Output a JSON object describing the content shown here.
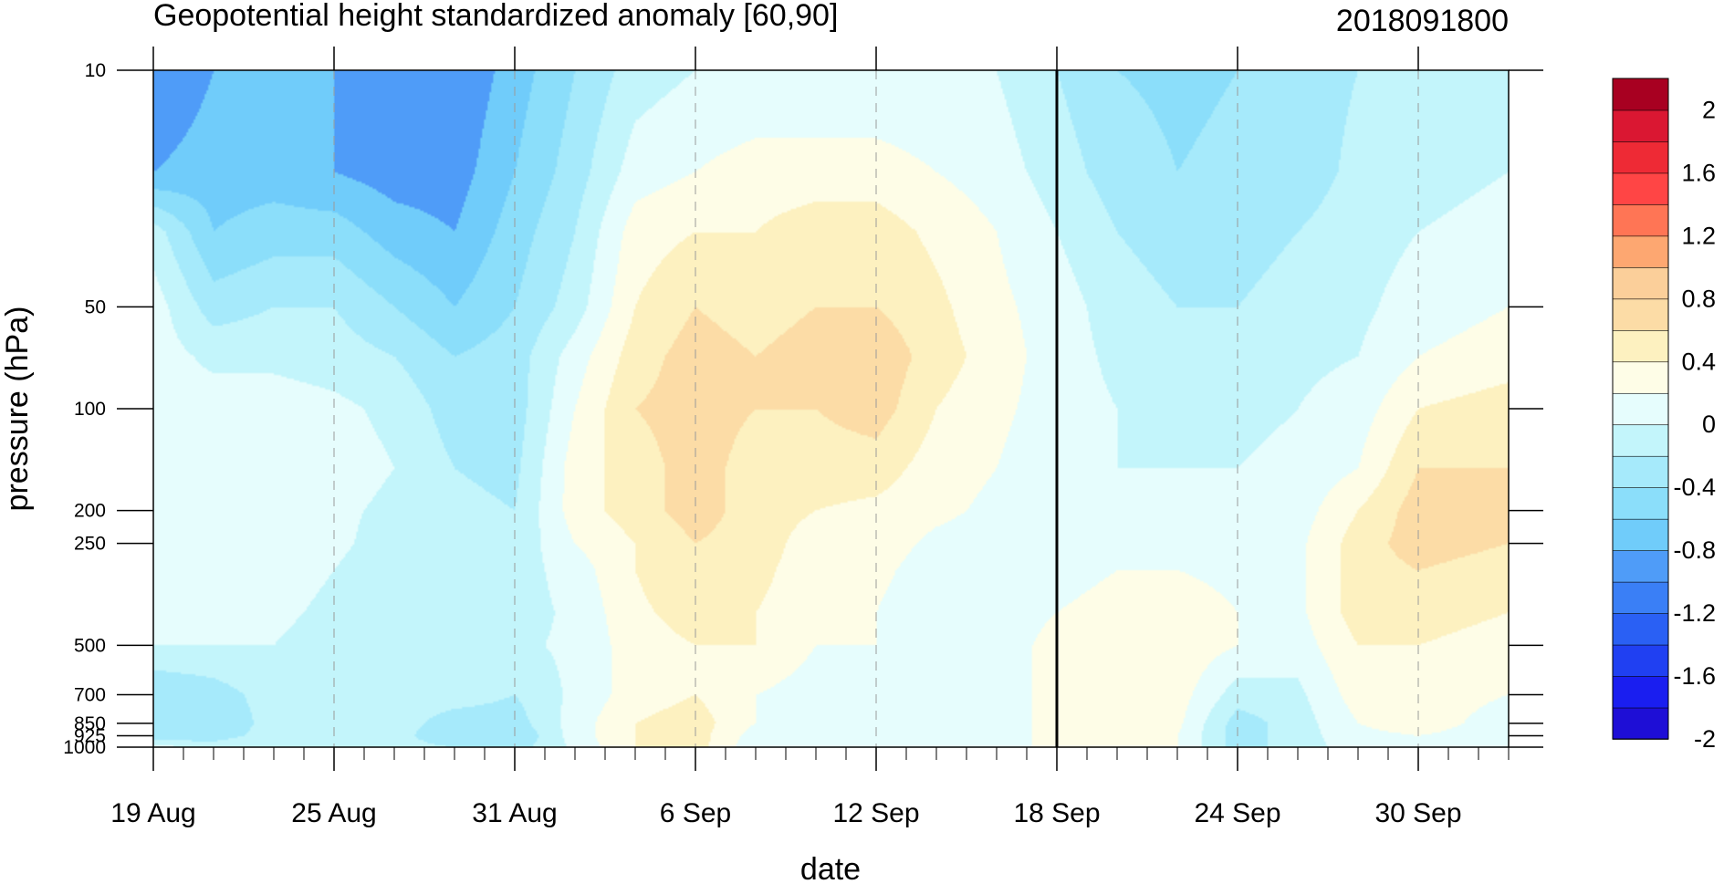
{
  "chart_data": {
    "type": "heatmap",
    "title": "Geopotential height standardized anomaly [60,90]",
    "date_label": "2018091800",
    "xlabel": "date",
    "ylabel": "pressure (hPa)",
    "x_ticks": [
      {
        "day": 0,
        "label": "19 Aug"
      },
      {
        "day": 6,
        "label": "25 Aug"
      },
      {
        "day": 12,
        "label": "31 Aug"
      },
      {
        "day": 18,
        "label": "6 Sep"
      },
      {
        "day": 24,
        "label": "12 Sep"
      },
      {
        "day": 30,
        "label": "18 Sep"
      },
      {
        "day": 36,
        "label": "24 Sep"
      },
      {
        "day": 42,
        "label": "30 Sep"
      }
    ],
    "x_range_days": [
      0,
      45
    ],
    "current_day": 30,
    "y_ticks": [
      {
        "p": 10,
        "label": "10"
      },
      {
        "p": 50,
        "label": "50"
      },
      {
        "p": 100,
        "label": "100"
      },
      {
        "p": 200,
        "label": "200"
      },
      {
        "p": 250,
        "label": "250"
      },
      {
        "p": 500,
        "label": "500"
      },
      {
        "p": 700,
        "label": "700"
      },
      {
        "p": 850,
        "label": "850"
      },
      {
        "p": 925,
        "label": "925"
      },
      {
        "p": 1000,
        "label": "1000"
      }
    ],
    "pressure_levels": [
      10,
      20,
      30,
      50,
      70,
      100,
      150,
      200,
      250,
      300,
      400,
      500,
      700,
      850,
      925,
      1000
    ],
    "y_scale": "log",
    "y_inverted": true,
    "contour_levels": [
      -2,
      -1.8,
      -1.6,
      -1.4,
      -1.2,
      -1,
      -0.8,
      -0.6,
      -0.4,
      -0.2,
      0,
      0.2,
      0.4,
      0.6,
      0.8,
      1,
      1.2,
      1.4,
      1.6,
      1.8,
      2
    ],
    "colorbar": {
      "colors": [
        "#1e0ed6",
        "#1a1ef0",
        "#2040f2",
        "#2a60f4",
        "#3a7ff6",
        "#4f9cf8",
        "#70ccfa",
        "#8bdefa",
        "#a6eafb",
        "#c3f5fb",
        "#e6fdfd",
        "#fefde7",
        "#fdf1c0",
        "#fcdca6",
        "#fbcf9a",
        "#fda771",
        "#ff7555",
        "#ff4545",
        "#ee2a35",
        "#da1732",
        "#a80021"
      ],
      "tick_labels": [
        "2",
        "1.6",
        "1.2",
        "0.8",
        "0.4",
        "0",
        "-0.4",
        "-0.8",
        "-1.2",
        "-1.6",
        "-2"
      ]
    },
    "anomaly_day_columns": [
      0,
      2,
      4,
      6,
      8,
      10,
      12,
      14,
      16,
      18,
      20,
      22,
      24,
      26,
      28,
      30,
      32,
      34,
      36,
      38,
      40,
      42,
      45
    ],
    "anomaly_grid": [
      [
        -1.0,
        -0.8,
        -0.1,
        0.1,
        0.1,
        0.1,
        0.1,
        0.1,
        0.1,
        0.1,
        0.0,
        0.0,
        -0.4,
        -0.3,
        -0.4,
        0.1
      ],
      [
        -0.8,
        -0.7,
        -0.6,
        -0.3,
        -0.05,
        0.1,
        0.1,
        0.1,
        0.05,
        0.05,
        0.05,
        0.0,
        -0.3,
        -0.4,
        -0.3,
        -0.1
      ],
      [
        -0.8,
        -0.7,
        -0.5,
        -0.2,
        -0.05,
        0.1,
        0.1,
        0.1,
        0.1,
        0.1,
        0.05,
        0.0,
        -0.1,
        -0.1,
        -0.1,
        0.0
      ],
      [
        -0.8,
        -0.8,
        -0.5,
        -0.2,
        -0.1,
        0.05,
        0.1,
        0.05,
        0.05,
        0.0,
        -0.05,
        -0.1,
        -0.2,
        -0.2,
        -0.15,
        -0.1
      ],
      [
        -0.9,
        -0.9,
        -0.7,
        -0.4,
        -0.2,
        -0.05,
        0.0,
        -0.05,
        -0.1,
        -0.15,
        -0.15,
        -0.15,
        -0.1,
        -0.1,
        -0.1,
        -0.1
      ],
      [
        -1.0,
        -0.9,
        -0.8,
        -0.6,
        -0.4,
        -0.3,
        -0.2,
        -0.15,
        -0.15,
        -0.15,
        -0.15,
        -0.15,
        -0.1,
        -0.3,
        -0.4,
        -0.2
      ],
      [
        -0.7,
        -0.6,
        -0.5,
        -0.4,
        -0.3,
        -0.3,
        -0.25,
        -0.2,
        -0.15,
        -0.1,
        -0.1,
        -0.05,
        -0.2,
        -0.3,
        -0.4,
        -0.3
      ],
      [
        -0.4,
        -0.3,
        -0.2,
        -0.1,
        0.1,
        0.2,
        0.3,
        0.3,
        0.2,
        0.1,
        0.05,
        0.05,
        0.05,
        0.1,
        0.1,
        0.05
      ],
      [
        -0.1,
        0.1,
        0.3,
        0.4,
        0.5,
        0.6,
        0.5,
        0.5,
        0.4,
        0.4,
        0.35,
        0.3,
        0.3,
        0.4,
        0.4,
        0.4
      ],
      [
        0.0,
        0.2,
        0.4,
        0.6,
        0.7,
        0.7,
        0.7,
        0.7,
        0.6,
        0.6,
        0.5,
        0.4,
        0.4,
        0.5,
        0.5,
        0.5
      ],
      [
        0.0,
        0.3,
        0.4,
        0.5,
        0.6,
        0.6,
        0.5,
        0.5,
        0.5,
        0.45,
        0.4,
        0.4,
        0.2,
        0.2,
        0.1,
        0.05
      ],
      [
        0.0,
        0.3,
        0.5,
        0.6,
        0.7,
        0.6,
        0.5,
        0.4,
        0.3,
        0.3,
        0.3,
        0.2,
        0.1,
        0.1,
        0.05,
        0.05
      ],
      [
        0.0,
        0.3,
        0.5,
        0.6,
        0.75,
        0.7,
        0.5,
        0.35,
        0.3,
        0.25,
        0.2,
        0.2,
        0.05,
        0.05,
        0.05,
        0.05
      ],
      [
        0.0,
        0.2,
        0.35,
        0.45,
        0.5,
        0.4,
        0.3,
        0.25,
        0.15,
        0.1,
        0.05,
        0.05,
        0.05,
        0.05,
        0.05,
        0.05
      ],
      [
        0.0,
        0.1,
        0.2,
        0.25,
        0.3,
        0.25,
        0.2,
        0.15,
        0.1,
        0.05,
        0.05,
        0.05,
        0.05,
        0.05,
        0.05,
        0.05
      ],
      [
        -0.2,
        -0.1,
        0.0,
        0.1,
        0.1,
        0.1,
        0.05,
        0.05,
        0.05,
        0.1,
        0.2,
        0.3,
        0.3,
        0.3,
        0.3,
        0.3
      ],
      [
        -0.4,
        -0.3,
        -0.2,
        -0.1,
        -0.05,
        0.0,
        0.0,
        0.05,
        0.1,
        0.2,
        0.3,
        0.4,
        0.4,
        0.4,
        0.35,
        0.3
      ],
      [
        -0.45,
        -0.4,
        -0.3,
        -0.2,
        -0.1,
        -0.05,
        0.0,
        0.05,
        0.1,
        0.2,
        0.3,
        0.35,
        0.3,
        0.25,
        0.2,
        0.2
      ],
      [
        -0.4,
        -0.35,
        -0.3,
        -0.2,
        -0.1,
        -0.05,
        0.0,
        0.05,
        0.1,
        0.15,
        0.2,
        0.2,
        -0.1,
        -0.3,
        -0.3,
        -0.3
      ],
      [
        -0.3,
        -0.3,
        -0.2,
        -0.1,
        -0.05,
        0.0,
        0.05,
        0.1,
        0.15,
        0.15,
        0.15,
        0.1,
        -0.05,
        -0.1,
        -0.1,
        -0.1
      ],
      [
        -0.2,
        -0.15,
        -0.1,
        -0.05,
        0.0,
        0.1,
        0.2,
        0.4,
        0.5,
        0.5,
        0.5,
        0.4,
        0.3,
        0.2,
        0.15,
        0.1
      ],
      [
        -0.1,
        -0.05,
        0.0,
        0.1,
        0.2,
        0.4,
        0.6,
        0.7,
        0.7,
        0.6,
        0.5,
        0.4,
        0.3,
        0.3,
        0.2,
        0.2
      ],
      [
        -0.05,
        0.0,
        0.05,
        0.2,
        0.3,
        0.5,
        0.6,
        0.65,
        0.6,
        0.5,
        0.4,
        0.3,
        0.2,
        0.1,
        0.1,
        0.1
      ]
    ]
  }
}
